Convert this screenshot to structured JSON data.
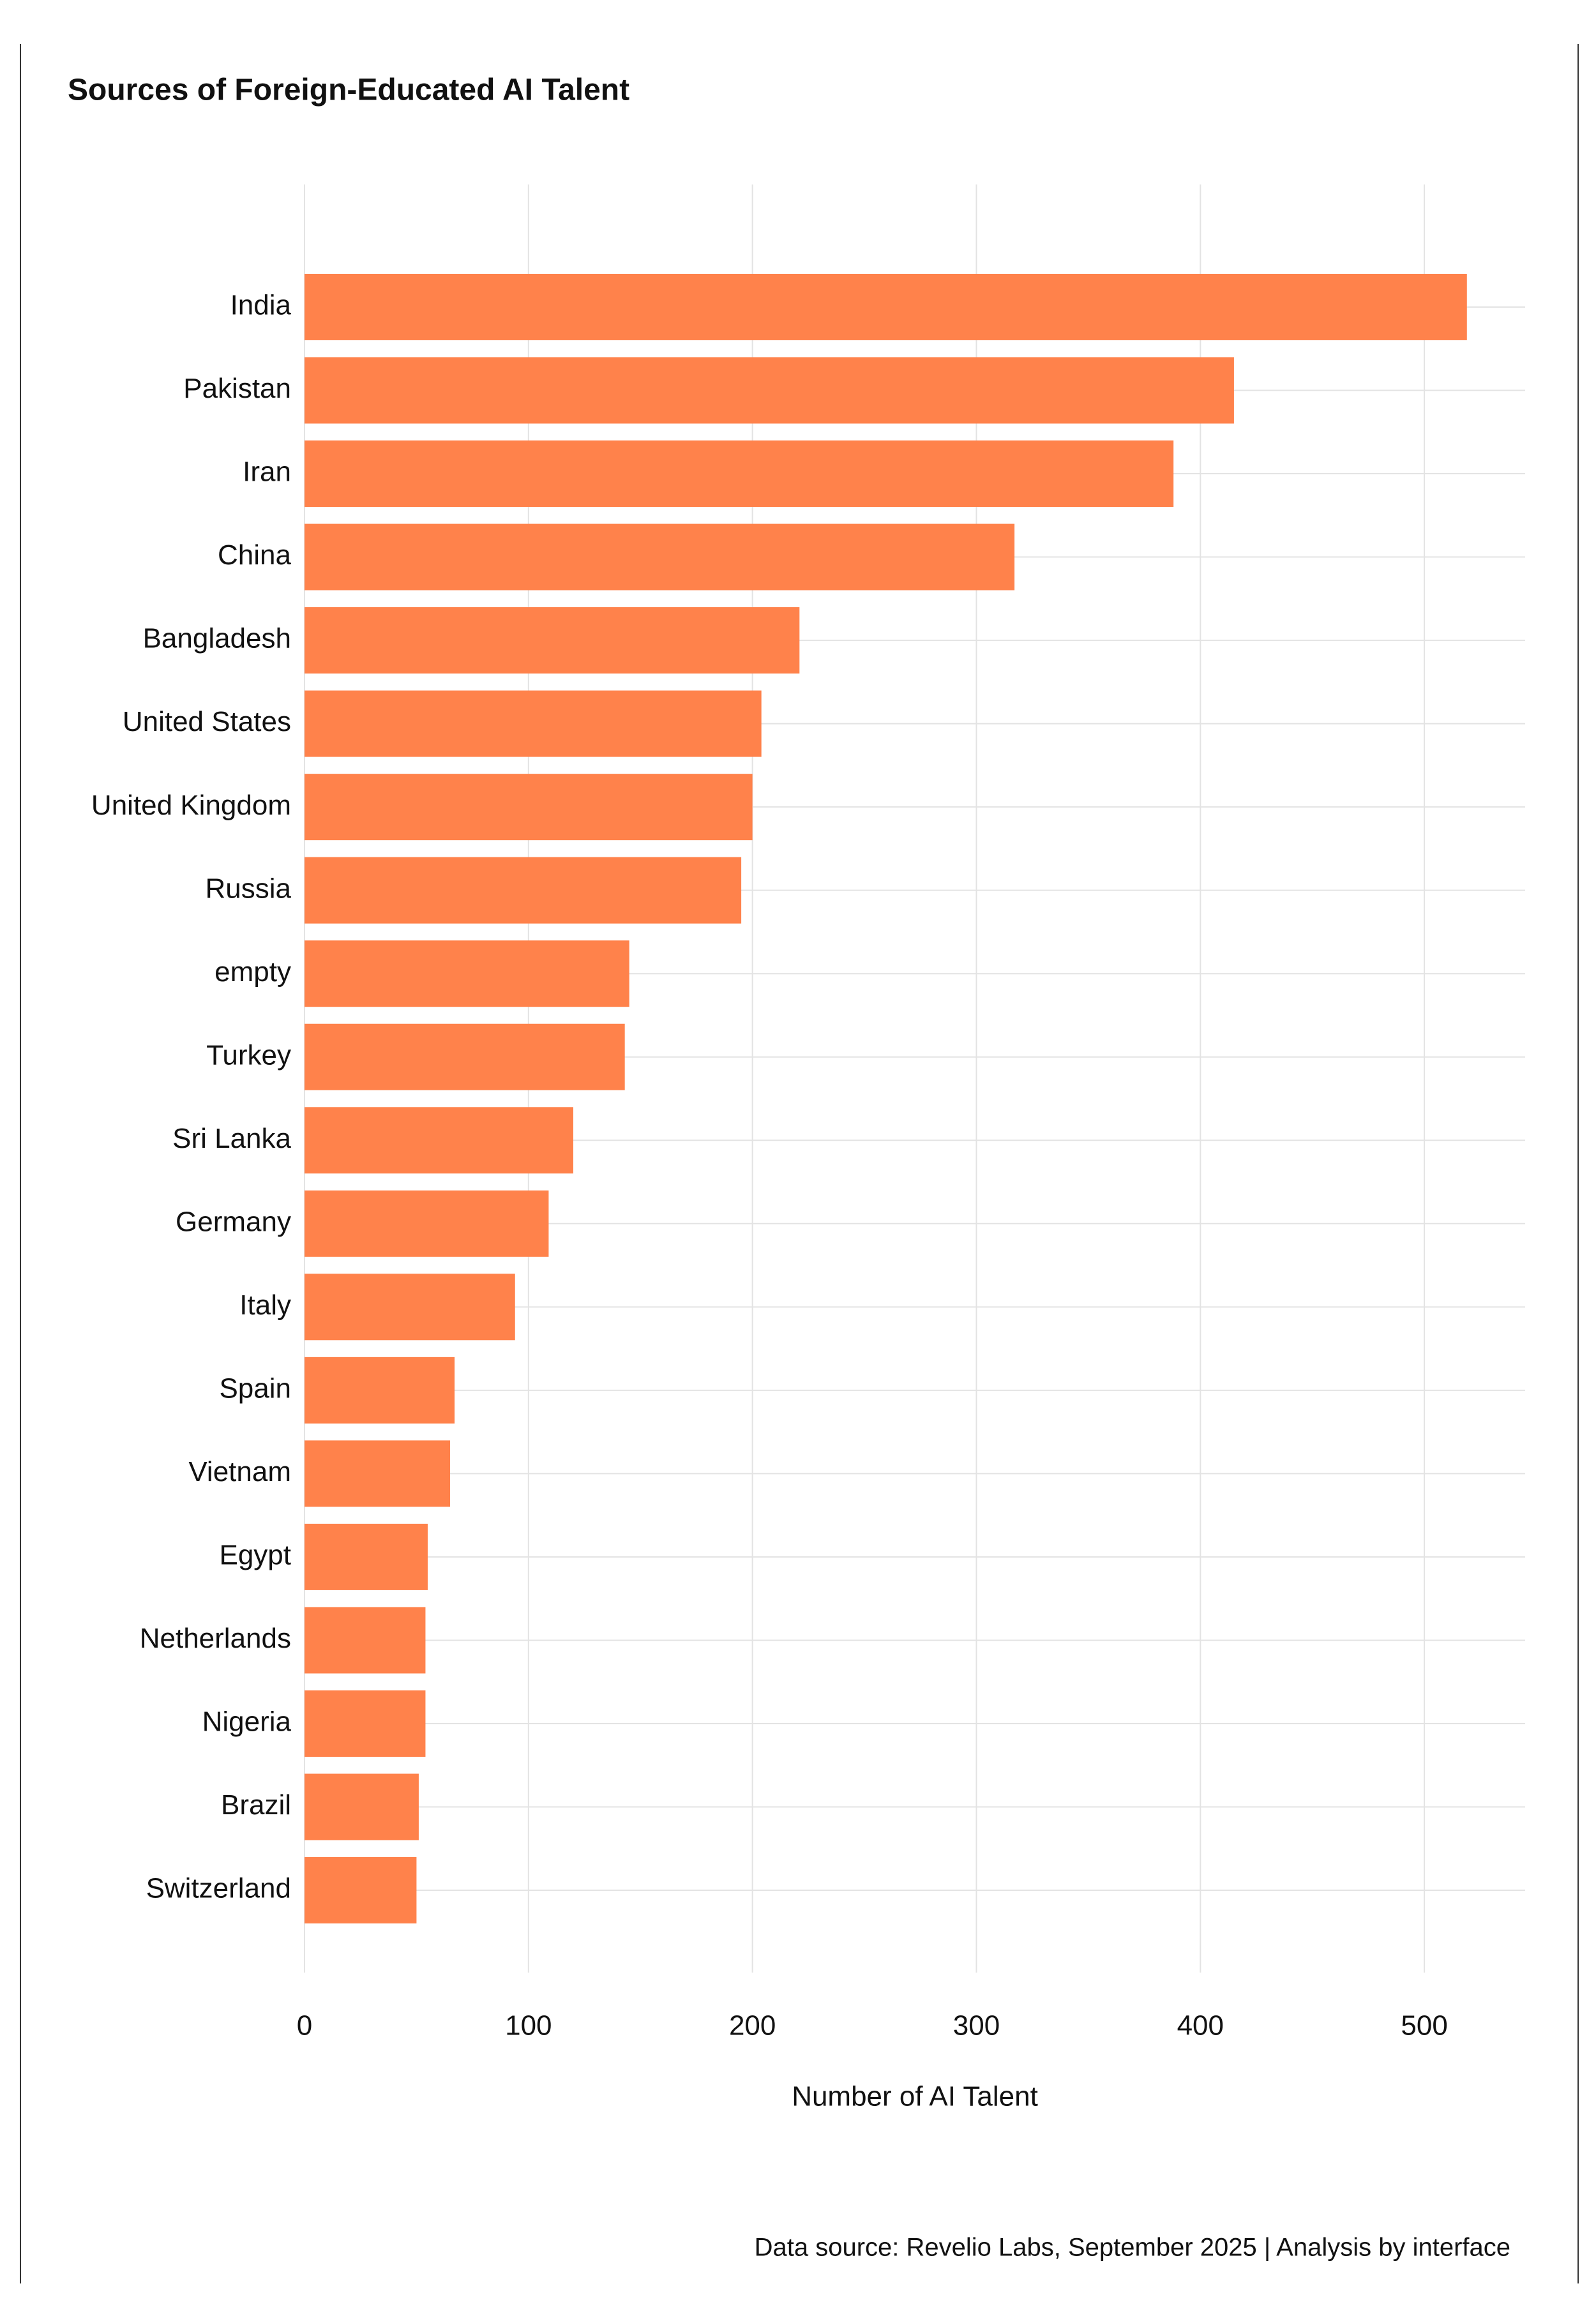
{
  "chart_data": {
    "type": "bar",
    "orientation": "horizontal",
    "title": "Sources of Foreign-Educated AI Talent",
    "categories": [
      "India",
      "Pakistan",
      "Iran",
      "China",
      "Bangladesh",
      "United States",
      "United Kingdom",
      "Russia",
      "empty",
      "Turkey",
      "Sri Lanka",
      "Germany",
      "Italy",
      "Spain",
      "Vietnam",
      "Egypt",
      "Netherlands",
      "Nigeria",
      "Brazil",
      "Switzerland"
    ],
    "values": [
      519,
      415,
      388,
      317,
      221,
      204,
      200,
      195,
      145,
      143,
      120,
      109,
      94,
      67,
      65,
      55,
      54,
      54,
      51,
      50
    ],
    "color": "#ff824b",
    "xlim": [
      0,
      545
    ],
    "xticks": [
      0,
      100,
      200,
      300,
      400,
      500
    ],
    "x_label": "Number of AI Talent",
    "grid": true,
    "source": "Data source: Revelio Labs, September 2025 | Analysis by interface"
  }
}
